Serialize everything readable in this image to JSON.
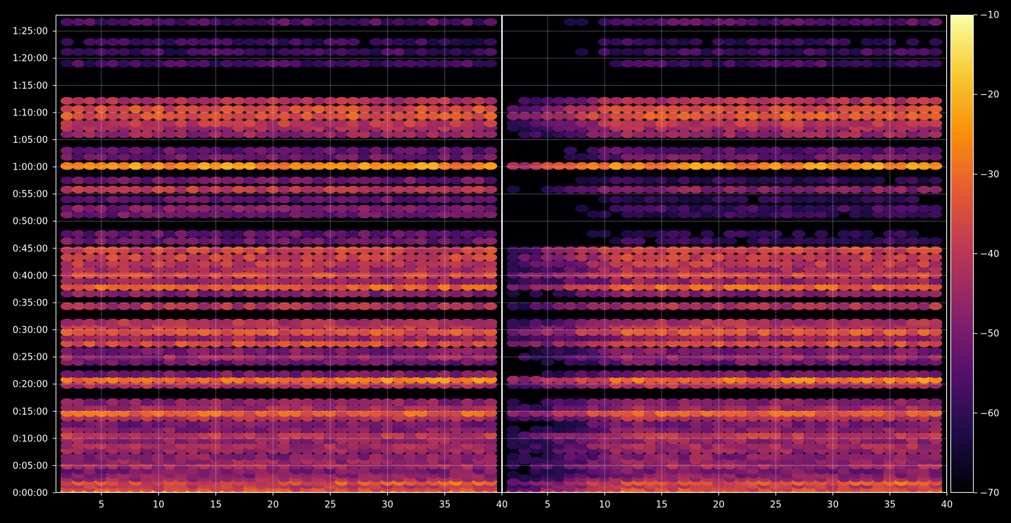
{
  "chart_data": {
    "type": "heatmap",
    "panels": [
      {
        "name": "",
        "xlim": [
          1,
          40
        ],
        "xticks": [
          5,
          10,
          15,
          20,
          25,
          30,
          35,
          40
        ]
      },
      {
        "name": "",
        "xlim": [
          1,
          40
        ],
        "xticks": [
          5,
          10,
          15,
          20,
          25,
          30,
          35,
          40
        ]
      }
    ],
    "y_axis": {
      "unit": "h:mm:ss",
      "range_seconds": [
        0,
        5280
      ],
      "tick_labels": [
        "0:00:00",
        "0:05:00",
        "0:10:00",
        "0:15:00",
        "0:20:00",
        "0:25:00",
        "0:30:00",
        "0:35:00",
        "0:40:00",
        "0:45:00",
        "0:50:00",
        "0:55:00",
        "1:00:00",
        "1:05:00",
        "1:10:00",
        "1:15:00",
        "1:20:00",
        "1:25:00"
      ],
      "tick_values_seconds": [
        0,
        300,
        600,
        900,
        1200,
        1500,
        1800,
        2100,
        2400,
        2700,
        3000,
        3300,
        3600,
        3900,
        4200,
        4500,
        4800,
        5100
      ]
    },
    "colorbar": {
      "colormap": "inferno",
      "range": [
        -70,
        -10
      ],
      "tick_values": [
        -70,
        -60,
        -50,
        -40,
        -30,
        -20,
        -10
      ],
      "tick_labels": [
        "−70",
        "−60",
        "−50",
        "−40",
        "−30",
        "−20",
        "−10"
      ]
    },
    "grid": true,
    "bands": [
      {
        "t": 15,
        "level": -28,
        "left_boost": 8
      },
      {
        "t": 50,
        "level": -36
      },
      {
        "t": 85,
        "level": -40
      },
      {
        "t": 120,
        "level": -36,
        "right_boost": 6
      },
      {
        "t": 160,
        "level": -44
      },
      {
        "t": 200,
        "level": -48
      },
      {
        "t": 245,
        "level": -50
      },
      {
        "t": 300,
        "level": -44
      },
      {
        "t": 355,
        "level": -46
      },
      {
        "t": 400,
        "level": -48
      },
      {
        "t": 470,
        "level": -46
      },
      {
        "t": 520,
        "level": -44
      },
      {
        "t": 580,
        "level": -46
      },
      {
        "t": 635,
        "level": -40
      },
      {
        "t": 700,
        "level": -48
      },
      {
        "t": 760,
        "level": -50
      },
      {
        "t": 830,
        "level": -42
      },
      {
        "t": 880,
        "level": -32
      },
      {
        "t": 940,
        "level": -44
      },
      {
        "t": 1000,
        "level": -48
      },
      {
        "t": 1190,
        "level": -42
      },
      {
        "t": 1250,
        "level": -30,
        "right_boost": 6
      },
      {
        "t": 1310,
        "level": -50
      },
      {
        "t": 1445,
        "level": -52
      },
      {
        "t": 1500,
        "level": -46
      },
      {
        "t": 1565,
        "level": -50
      },
      {
        "t": 1650,
        "level": -36
      },
      {
        "t": 1715,
        "level": -46
      },
      {
        "t": 1775,
        "level": -34
      },
      {
        "t": 1840,
        "level": -40
      },
      {
        "t": 1880,
        "level": -42
      },
      {
        "t": 2060,
        "level": -42
      },
      {
        "t": 2200,
        "level": -48
      },
      {
        "t": 2275,
        "level": -32
      },
      {
        "t": 2340,
        "level": -46
      },
      {
        "t": 2410,
        "level": -36
      },
      {
        "t": 2470,
        "level": -44
      },
      {
        "t": 2530,
        "level": -40
      },
      {
        "t": 2600,
        "level": -38
      },
      {
        "t": 2680,
        "level": -38
      },
      {
        "t": 2780,
        "level": -52
      },
      {
        "t": 2860,
        "level": -54
      },
      {
        "t": 3075,
        "level": -52
      },
      {
        "t": 3140,
        "level": -50
      },
      {
        "t": 3240,
        "level": -54
      },
      {
        "t": 3350,
        "level": -40
      },
      {
        "t": 3450,
        "level": -52
      },
      {
        "t": 3610,
        "level": -26
      },
      {
        "t": 3710,
        "level": -52
      },
      {
        "t": 3780,
        "level": -54
      },
      {
        "t": 3960,
        "level": -46
      },
      {
        "t": 4030,
        "level": -44
      },
      {
        "t": 4080,
        "level": -40
      },
      {
        "t": 4160,
        "level": -34
      },
      {
        "t": 4240,
        "level": -36
      },
      {
        "t": 4330,
        "level": -42
      },
      {
        "t": 4740,
        "level": -58
      },
      {
        "t": 4870,
        "level": -58
      },
      {
        "t": 4980,
        "level": -60
      },
      {
        "t": 5200,
        "level": -56
      }
    ]
  }
}
